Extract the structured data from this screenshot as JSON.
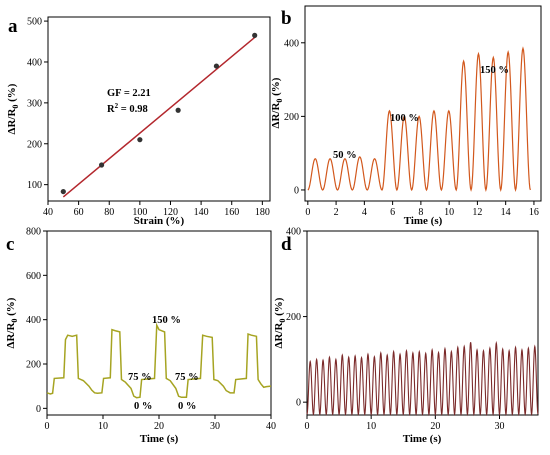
{
  "chart_data": [
    {
      "panel": "a",
      "type": "scatter",
      "xlabel": "Strain (%)",
      "ylabel": "ΔR/R0 (%)",
      "ylabel_main": "ΔR/R",
      "ylabel_sub": "0",
      "ylabel_unit": " (%)",
      "xlim": [
        40,
        185
      ],
      "ylim": [
        60,
        510
      ],
      "xticks": [
        40,
        60,
        80,
        100,
        120,
        140,
        160,
        180
      ],
      "yticks": [
        100,
        200,
        300,
        400,
        500
      ],
      "points": [
        [
          50,
          83
        ],
        [
          75,
          148
        ],
        [
          100,
          210
        ],
        [
          125,
          282
        ],
        [
          150,
          390
        ],
        [
          175,
          465
        ]
      ],
      "fit_line": [
        [
          50,
          70
        ],
        [
          175,
          460
        ]
      ],
      "annotations": [
        "GF = 2.21",
        "R2 = 0.98"
      ],
      "annotation_gf": "GF = 2.21",
      "annotation_r2_main": "R",
      "annotation_r2_sup": "2",
      "annotation_r2_rest": " = 0.98",
      "colors": {
        "line": "#b3272d",
        "marker": "#333333"
      }
    },
    {
      "panel": "b",
      "type": "line",
      "xlabel": "Time (s)",
      "ylabel": "ΔR/R0 (%)",
      "ylabel_main": "ΔR/R",
      "ylabel_sub": "0",
      "ylabel_unit": " (%)",
      "xlim": [
        -0.2,
        16.5
      ],
      "ylim": [
        -30,
        500
      ],
      "xticks": [
        0,
        2,
        4,
        6,
        8,
        10,
        12,
        14,
        16
      ],
      "yticks": [
        0,
        200,
        400
      ],
      "period_s": 1.05,
      "baseline": 0,
      "peaks": [
        85,
        85,
        85,
        90,
        85,
        215,
        200,
        200,
        215,
        215,
        350,
        370,
        360,
        375,
        385
      ],
      "annotations": [
        "50 %",
        "100 %",
        "150 %"
      ],
      "colors": {
        "line": "#d2581d"
      }
    },
    {
      "panel": "c",
      "type": "line",
      "xlabel": "Time (s)",
      "ylabel": "ΔR/R0 (%)",
      "ylabel_main": "ΔR/R",
      "ylabel_sub": "0",
      "ylabel_unit": " (%)",
      "xlim": [
        0,
        40
      ],
      "ylim": [
        -30,
        800
      ],
      "xticks": [
        0,
        10,
        20,
        30,
        40
      ],
      "yticks": [
        0,
        200,
        400,
        600,
        800
      ],
      "points": [
        [
          0,
          70
        ],
        [
          0.6,
          65
        ],
        [
          1,
          68
        ],
        [
          1.3,
          135
        ],
        [
          3,
          138
        ],
        [
          3.3,
          310
        ],
        [
          3.7,
          330
        ],
        [
          4.5,
          325
        ],
        [
          5.3,
          330
        ],
        [
          5.6,
          135
        ],
        [
          6.5,
          125
        ],
        [
          7.5,
          100
        ],
        [
          8,
          82
        ],
        [
          8.5,
          70
        ],
        [
          9,
          68
        ],
        [
          9.8,
          70
        ],
        [
          10.1,
          135
        ],
        [
          11.3,
          138
        ],
        [
          11.6,
          355
        ],
        [
          12.2,
          350
        ],
        [
          13,
          345
        ],
        [
          13.3,
          130
        ],
        [
          14,
          118
        ],
        [
          15,
          90
        ],
        [
          15.5,
          55
        ],
        [
          16,
          48
        ],
        [
          16.6,
          50
        ],
        [
          16.9,
          130
        ],
        [
          19.2,
          135
        ],
        [
          19.6,
          375
        ],
        [
          20,
          355
        ],
        [
          21,
          345
        ],
        [
          21.3,
          135
        ],
        [
          22,
          125
        ],
        [
          23,
          90
        ],
        [
          23.5,
          55
        ],
        [
          24,
          50
        ],
        [
          24.9,
          50
        ],
        [
          25.2,
          130
        ],
        [
          27.4,
          135
        ],
        [
          27.8,
          330
        ],
        [
          28.5,
          325
        ],
        [
          29.5,
          320
        ],
        [
          29.8,
          130
        ],
        [
          30.5,
          125
        ],
        [
          31.5,
          100
        ],
        [
          32,
          80
        ],
        [
          32.7,
          70
        ],
        [
          33.4,
          70
        ],
        [
          33.7,
          130
        ],
        [
          35.6,
          135
        ],
        [
          35.9,
          335
        ],
        [
          36.5,
          330
        ],
        [
          37.4,
          325
        ],
        [
          37.7,
          130
        ],
        [
          38.2,
          110
        ],
        [
          38.7,
          95
        ],
        [
          39.2,
          98
        ],
        [
          40,
          100
        ]
      ],
      "annotations": [
        "150 %",
        "75 %",
        "75 %",
        "0 %",
        "0 %"
      ],
      "colors": {
        "line": "#a6a422"
      }
    },
    {
      "panel": "d",
      "type": "line",
      "xlabel": "Time (s)",
      "ylabel": "ΔR/R0 (%)",
      "ylabel_main": "ΔR/R",
      "ylabel_sub": "0",
      "ylabel_unit": " (%)",
      "xlim": [
        0,
        36
      ],
      "ylim": [
        -30,
        400
      ],
      "xticks": [
        0,
        10,
        20,
        30
      ],
      "yticks": [
        0,
        200,
        400
      ],
      "period_s": 1.0,
      "baseline": -28,
      "peaks": [
        95,
        100,
        98,
        105,
        100,
        110,
        105,
        108,
        104,
        112,
        106,
        115,
        110,
        118,
        112,
        120,
        115,
        118,
        114,
        122,
        116,
        125,
        118,
        128,
        130,
        140,
        122,
        120,
        126,
        138,
        124,
        120,
        128,
        122,
        126,
        130
      ],
      "colors": {
        "line": "#7b2a2a"
      }
    }
  ],
  "figure": {
    "panel_letters": [
      "a",
      "b",
      "c",
      "d"
    ]
  }
}
